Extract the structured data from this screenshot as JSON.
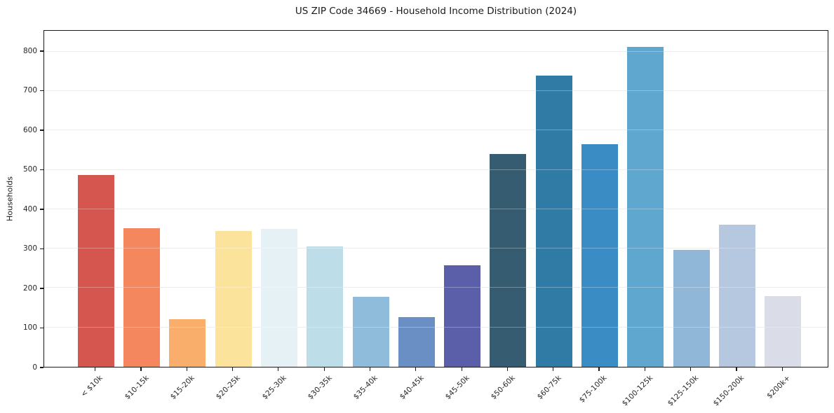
{
  "chart_data": {
    "type": "bar",
    "title": "US ZIP Code 34669 - Household Income Distribution (2024)",
    "xlabel": "",
    "ylabel": "Households",
    "categories": [
      "< $10k",
      "$10-15k",
      "$15-20k",
      "$20-25k",
      "$25-30k",
      "$30-35k",
      "$35-40k",
      "$40-45k",
      "$45-50k",
      "$50-60k",
      "$60-75k",
      "$75-100k",
      "$100-125k",
      "$125-150k",
      "$150-200k",
      "$200k+"
    ],
    "values": [
      487,
      352,
      120,
      344,
      350,
      306,
      177,
      126,
      257,
      540,
      740,
      565,
      812,
      296,
      361,
      179
    ],
    "bar_colors": [
      "#d5554f",
      "#f5875f",
      "#f9ae6b",
      "#fce39c",
      "#e5f1f4",
      "#bddee9",
      "#90bcdc",
      "#6a8fc4",
      "#5b5ea9",
      "#355c71",
      "#2f7ba6",
      "#3a8cc4",
      "#5fa7ce",
      "#90b7d7",
      "#b6c8e0",
      "#dadce8"
    ],
    "yticks": [
      0,
      100,
      200,
      300,
      400,
      500,
      600,
      700,
      800
    ],
    "ylim": [
      0,
      853
    ],
    "grid": "horizontal",
    "legend_position": "none",
    "plot_background": "#ffffff",
    "gridline_color": "#e6e6e6"
  }
}
